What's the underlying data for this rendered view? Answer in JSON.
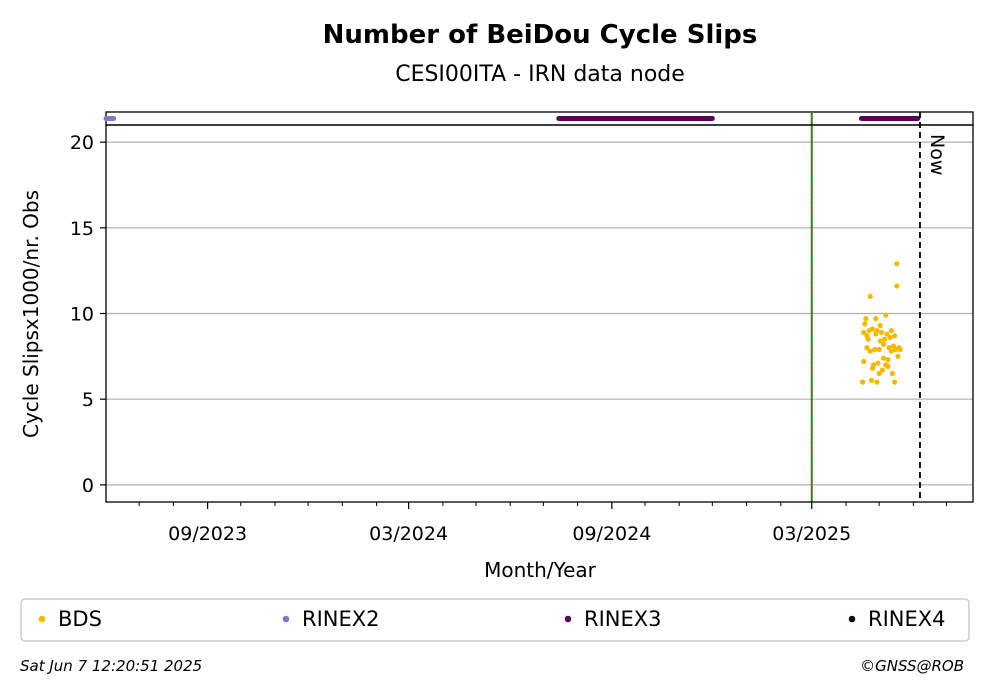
{
  "chart_data": {
    "type": "scatter",
    "title": "Number of BeiDou Cycle Slips",
    "subtitle": "CESI00ITA - IRN data node",
    "xlabel": "Month/Year",
    "ylabel": "Cycle Slipsx1000/nr. Obs",
    "xlim": [
      "2023-06-01",
      "2025-07-25"
    ],
    "ylim": [
      -1,
      21
    ],
    "y_ticks": [
      0,
      5,
      10,
      15,
      20
    ],
    "x_ticks": [
      {
        "date": "2023-09-01",
        "label": "09/2023"
      },
      {
        "date": "2024-03-01",
        "label": "03/2024"
      },
      {
        "date": "2024-09-01",
        "label": "09/2024"
      },
      {
        "date": "2025-03-01",
        "label": "03/2025"
      }
    ],
    "x_minor_ticks": [
      "2023-07-01",
      "2023-08-01",
      "2023-10-01",
      "2023-11-01",
      "2023-12-01",
      "2024-01-01",
      "2024-02-01",
      "2024-04-01",
      "2024-05-01",
      "2024-06-01",
      "2024-07-01",
      "2024-08-01",
      "2024-10-01",
      "2024-11-01",
      "2024-12-01",
      "2025-01-01",
      "2025-02-01",
      "2025-04-01",
      "2025-05-01",
      "2025-06-01",
      "2025-07-01"
    ],
    "grid": "horizontal",
    "vertical_lines": [
      {
        "date": "2025-03-01",
        "style": "green-red-dotted"
      },
      {
        "date": "2025-06-07",
        "style": "black-dashed",
        "label": "Now"
      }
    ],
    "rinex_bars": [
      {
        "name": "RINEX2",
        "color": "#7b7bbf",
        "from": "2023-06-01",
        "to": "2023-06-08"
      },
      {
        "name": "RINEX3",
        "color": "#5a005a",
        "from": "2024-07-15",
        "to": "2024-12-01"
      },
      {
        "name": "RINEX3",
        "color": "#5a005a",
        "from": "2025-04-15",
        "to": "2025-06-05"
      }
    ],
    "series": [
      {
        "name": "BDS",
        "color": "#f5b800",
        "points": [
          [
            "2025-04-16",
            6.0
          ],
          [
            "2025-04-17",
            7.2
          ],
          [
            "2025-04-17",
            8.9
          ],
          [
            "2025-04-18",
            9.4
          ],
          [
            "2025-04-19",
            9.7
          ],
          [
            "2025-04-20",
            8.0
          ],
          [
            "2025-04-20",
            8.7
          ],
          [
            "2025-04-21",
            8.5
          ],
          [
            "2025-04-22",
            9.0
          ],
          [
            "2025-04-23",
            11.0
          ],
          [
            "2025-04-23",
            7.8
          ],
          [
            "2025-04-24",
            6.1
          ],
          [
            "2025-04-25",
            6.8
          ],
          [
            "2025-04-25",
            9.1
          ],
          [
            "2025-04-26",
            7.0
          ],
          [
            "2025-04-27",
            7.9
          ],
          [
            "2025-04-28",
            8.8
          ],
          [
            "2025-04-28",
            9.7
          ],
          [
            "2025-04-29",
            9.0
          ],
          [
            "2025-04-29",
            6.0
          ],
          [
            "2025-04-30",
            7.1
          ],
          [
            "2025-05-01",
            6.5
          ],
          [
            "2025-05-01",
            7.9
          ],
          [
            "2025-05-02",
            8.4
          ],
          [
            "2025-05-02",
            9.3
          ],
          [
            "2025-05-03",
            8.9
          ],
          [
            "2025-05-04",
            6.7
          ],
          [
            "2025-05-05",
            7.4
          ],
          [
            "2025-05-05",
            8.2
          ],
          [
            "2025-05-06",
            8.5
          ],
          [
            "2025-05-07",
            9.9
          ],
          [
            "2025-05-07",
            7.0
          ],
          [
            "2025-05-08",
            8.8
          ],
          [
            "2025-05-09",
            7.3
          ],
          [
            "2025-05-09",
            6.9
          ],
          [
            "2025-05-10",
            8.0
          ],
          [
            "2025-05-11",
            8.6
          ],
          [
            "2025-05-12",
            7.8
          ],
          [
            "2025-05-12",
            9.0
          ],
          [
            "2025-05-13",
            6.5
          ],
          [
            "2025-05-14",
            8.1
          ],
          [
            "2025-05-15",
            8.7
          ],
          [
            "2025-05-15",
            6.0
          ],
          [
            "2025-05-16",
            7.9
          ],
          [
            "2025-05-17",
            12.9
          ],
          [
            "2025-05-17",
            11.6
          ],
          [
            "2025-05-18",
            7.5
          ],
          [
            "2025-05-19",
            8.0
          ],
          [
            "2025-05-20",
            7.9
          ]
        ]
      },
      {
        "name": "RINEX2",
        "color": "#7b7bbf",
        "points": []
      },
      {
        "name": "RINEX3",
        "color": "#5a005a",
        "points": []
      },
      {
        "name": "RINEX4",
        "color": "#1a0020",
        "points": []
      }
    ],
    "legend_placement": "bottom"
  },
  "footer": {
    "timestamp": "Sat Jun  7 12:20:51 2025",
    "credit": "©GNSS@ROB"
  }
}
